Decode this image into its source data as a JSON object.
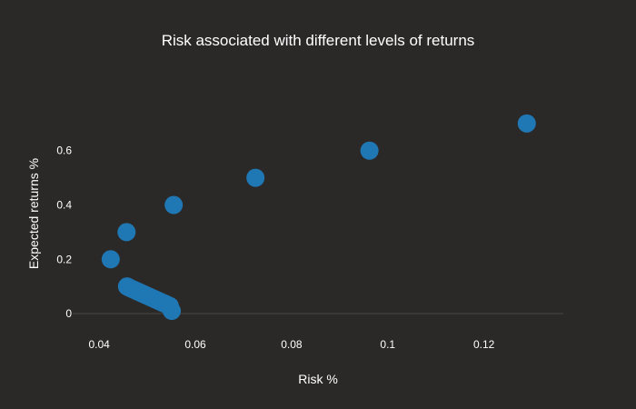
{
  "chart_data": {
    "type": "scatter",
    "title": "Risk associated with different levels of returns",
    "xlabel": "Risk %",
    "ylabel": "Expected returns %",
    "xlim": [
      0.0345,
      0.1365
    ],
    "ylim": [
      -0.05,
      0.82
    ],
    "xticks": [
      {
        "value": 0.04,
        "label": "0.04"
      },
      {
        "value": 0.06,
        "label": "0.06"
      },
      {
        "value": 0.08,
        "label": "0.08"
      },
      {
        "value": 0.1,
        "label": "0.1"
      },
      {
        "value": 0.12,
        "label": "0.12"
      }
    ],
    "yticks": [
      {
        "value": 0,
        "label": "0"
      },
      {
        "value": 0.2,
        "label": "0.2"
      },
      {
        "value": 0.4,
        "label": "0.4"
      },
      {
        "value": 0.6,
        "label": "0.6"
      }
    ],
    "grid": false,
    "marker_color": "#1f77b4",
    "series": [
      {
        "x": [
          0.0424,
          0.0457,
          0.0555,
          0.0725,
          0.0962,
          0.1289,
          0.0458,
          0.0462,
          0.0467,
          0.0472,
          0.0477,
          0.0482,
          0.0487,
          0.0492,
          0.0497,
          0.0502,
          0.0507,
          0.0512,
          0.0517,
          0.0522,
          0.0527,
          0.0532,
          0.0537,
          0.0542,
          0.0547,
          0.0551
        ],
        "y": [
          0.2,
          0.3,
          0.4,
          0.5,
          0.6,
          0.7,
          0.1,
          0.096,
          0.092,
          0.088,
          0.084,
          0.08,
          0.076,
          0.072,
          0.068,
          0.064,
          0.06,
          0.056,
          0.052,
          0.048,
          0.044,
          0.04,
          0.036,
          0.032,
          0.028,
          0.01
        ]
      }
    ]
  }
}
